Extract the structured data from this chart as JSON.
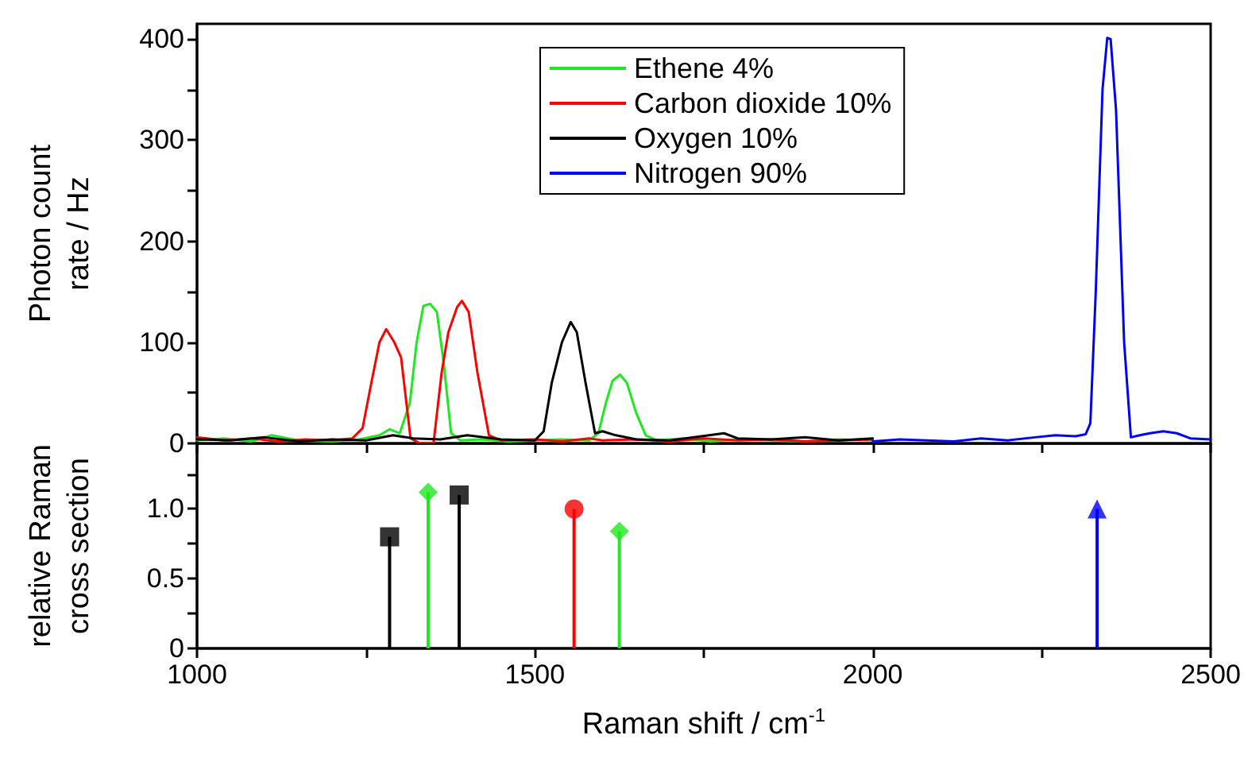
{
  "chart_data": [
    {
      "type": "line",
      "ylabel": "Photon count\nrate / Hz",
      "xlim": [
        1000,
        2500
      ],
      "ylim": [
        0,
        415
      ],
      "xticks": [
        {
          "value": 1000,
          "label": null
        },
        {
          "value": 1250,
          "label": null
        },
        {
          "value": 1500,
          "label": null
        },
        {
          "value": 1750,
          "label": null
        },
        {
          "value": 2000,
          "label": null
        },
        {
          "value": 2250,
          "label": null
        },
        {
          "value": 2500,
          "label": null
        }
      ],
      "yticks": [
        0,
        {
          "value": 50,
          "label": null
        },
        100,
        {
          "value": 150,
          "label": null
        },
        200,
        {
          "value": 250,
          "label": null
        },
        300,
        {
          "value": 350,
          "label": null
        },
        400
      ],
      "tick_labels": "y",
      "legend": "top",
      "grid": false,
      "marker": "none",
      "line_style": "solid",
      "series": [
        {
          "name": "Ethene 4%",
          "color": "#1ee81e",
          "x": [
            1000,
            1040,
            1080,
            1110,
            1150,
            1200,
            1240,
            1270,
            1285,
            1300,
            1315,
            1325,
            1335,
            1345,
            1355,
            1365,
            1376,
            1390,
            1420,
            1460,
            1500,
            1540,
            1580,
            1594,
            1605,
            1615,
            1626,
            1636,
            1650,
            1664,
            1680,
            1720,
            1760,
            1800,
            1850,
            1900,
            1950,
            2000
          ],
          "values": [
            3,
            5,
            2,
            8,
            3,
            2,
            4,
            8,
            14,
            10,
            40,
            100,
            136,
            138,
            130,
            80,
            10,
            3,
            4,
            2,
            3,
            4,
            3,
            10,
            40,
            62,
            68,
            60,
            30,
            8,
            3,
            5,
            2,
            4,
            3,
            2,
            4,
            3
          ]
        },
        {
          "name": "Carbon dioxide 10%",
          "color": "#ff0000",
          "x": [
            1000,
            1040,
            1080,
            1120,
            1160,
            1200,
            1230,
            1245,
            1258,
            1270,
            1280,
            1292,
            1302,
            1316,
            1330,
            1350,
            1362,
            1372,
            1385,
            1392,
            1402,
            1415,
            1432,
            1450,
            1500,
            1540,
            1580,
            1600,
            1650,
            1700,
            1750,
            1800,
            1850,
            1900,
            1950,
            2000
          ],
          "values": [
            6,
            3,
            5,
            2,
            4,
            3,
            5,
            15,
            60,
            100,
            113,
            100,
            85,
            5,
            0,
            0,
            70,
            110,
            135,
            141,
            130,
            70,
            8,
            3,
            4,
            2,
            5,
            3,
            4,
            2,
            5,
            3,
            4,
            2,
            3,
            4
          ]
        },
        {
          "name": "Oxygen 10%",
          "color": "#000000",
          "x": [
            1000,
            1050,
            1100,
            1150,
            1200,
            1250,
            1290,
            1320,
            1360,
            1400,
            1450,
            1500,
            1513,
            1525,
            1540,
            1553,
            1562,
            1575,
            1589,
            1600,
            1620,
            1650,
            1700,
            1780,
            1800,
            1850,
            1900,
            1950,
            2000
          ],
          "values": [
            4,
            3,
            6,
            2,
            4,
            3,
            8,
            5,
            4,
            8,
            4,
            3,
            12,
            60,
            100,
            120,
            110,
            60,
            10,
            12,
            8,
            4,
            3,
            10,
            5,
            4,
            6,
            3,
            5
          ]
        },
        {
          "name": "Nitrogen 90%",
          "color": "#0000ff",
          "x": [
            2000,
            2040,
            2080,
            2120,
            2160,
            2200,
            2240,
            2270,
            2300,
            2315,
            2322,
            2330,
            2340,
            2347,
            2352,
            2360,
            2372,
            2382,
            2395,
            2410,
            2430,
            2450,
            2470,
            2500
          ],
          "values": [
            2,
            4,
            3,
            2,
            5,
            3,
            6,
            8,
            7,
            9,
            20,
            150,
            350,
            401,
            400,
            330,
            100,
            6,
            8,
            10,
            12,
            10,
            5,
            4
          ]
        }
      ]
    },
    {
      "type": "lollipop",
      "xlabel": "Raman shift / cm$^{-1}$",
      "ylabel": "relative Raman\ncross section",
      "xlim": [
        1000,
        2500
      ],
      "ylim": [
        0,
        1.47
      ],
      "xticks": [
        1000,
        {
          "value": 1250,
          "label": null
        },
        1500,
        {
          "value": 1750,
          "label": null
        },
        2000,
        {
          "value": 2250,
          "label": null
        },
        2500
      ],
      "yticks": [
        0,
        {
          "value": 0.25,
          "label": null
        },
        {
          "value": 0.5,
          "label": "0.5"
        },
        {
          "value": 0.75,
          "label": null
        },
        {
          "value": 1,
          "label": "1.0"
        },
        {
          "value": 1.25,
          "label": null
        }
      ],
      "grid": false,
      "legend": false,
      "series": [
        {
          "color": "#000000",
          "marker": "square",
          "x": [
            1285,
            1388
          ],
          "values": [
            0.8,
            1.1
          ]
        },
        {
          "color": "#1ee81e",
          "marker": "diamond",
          "x": [
            1342,
            1625
          ],
          "values": [
            1.12,
            0.84
          ]
        },
        {
          "color": "#ff0000",
          "marker": "circle",
          "x": [
            1558
          ],
          "values": [
            1.0
          ]
        },
        {
          "color": "#0000ff",
          "marker": "triangle",
          "x": [
            2332
          ],
          "values": [
            1.0
          ]
        }
      ]
    }
  ]
}
